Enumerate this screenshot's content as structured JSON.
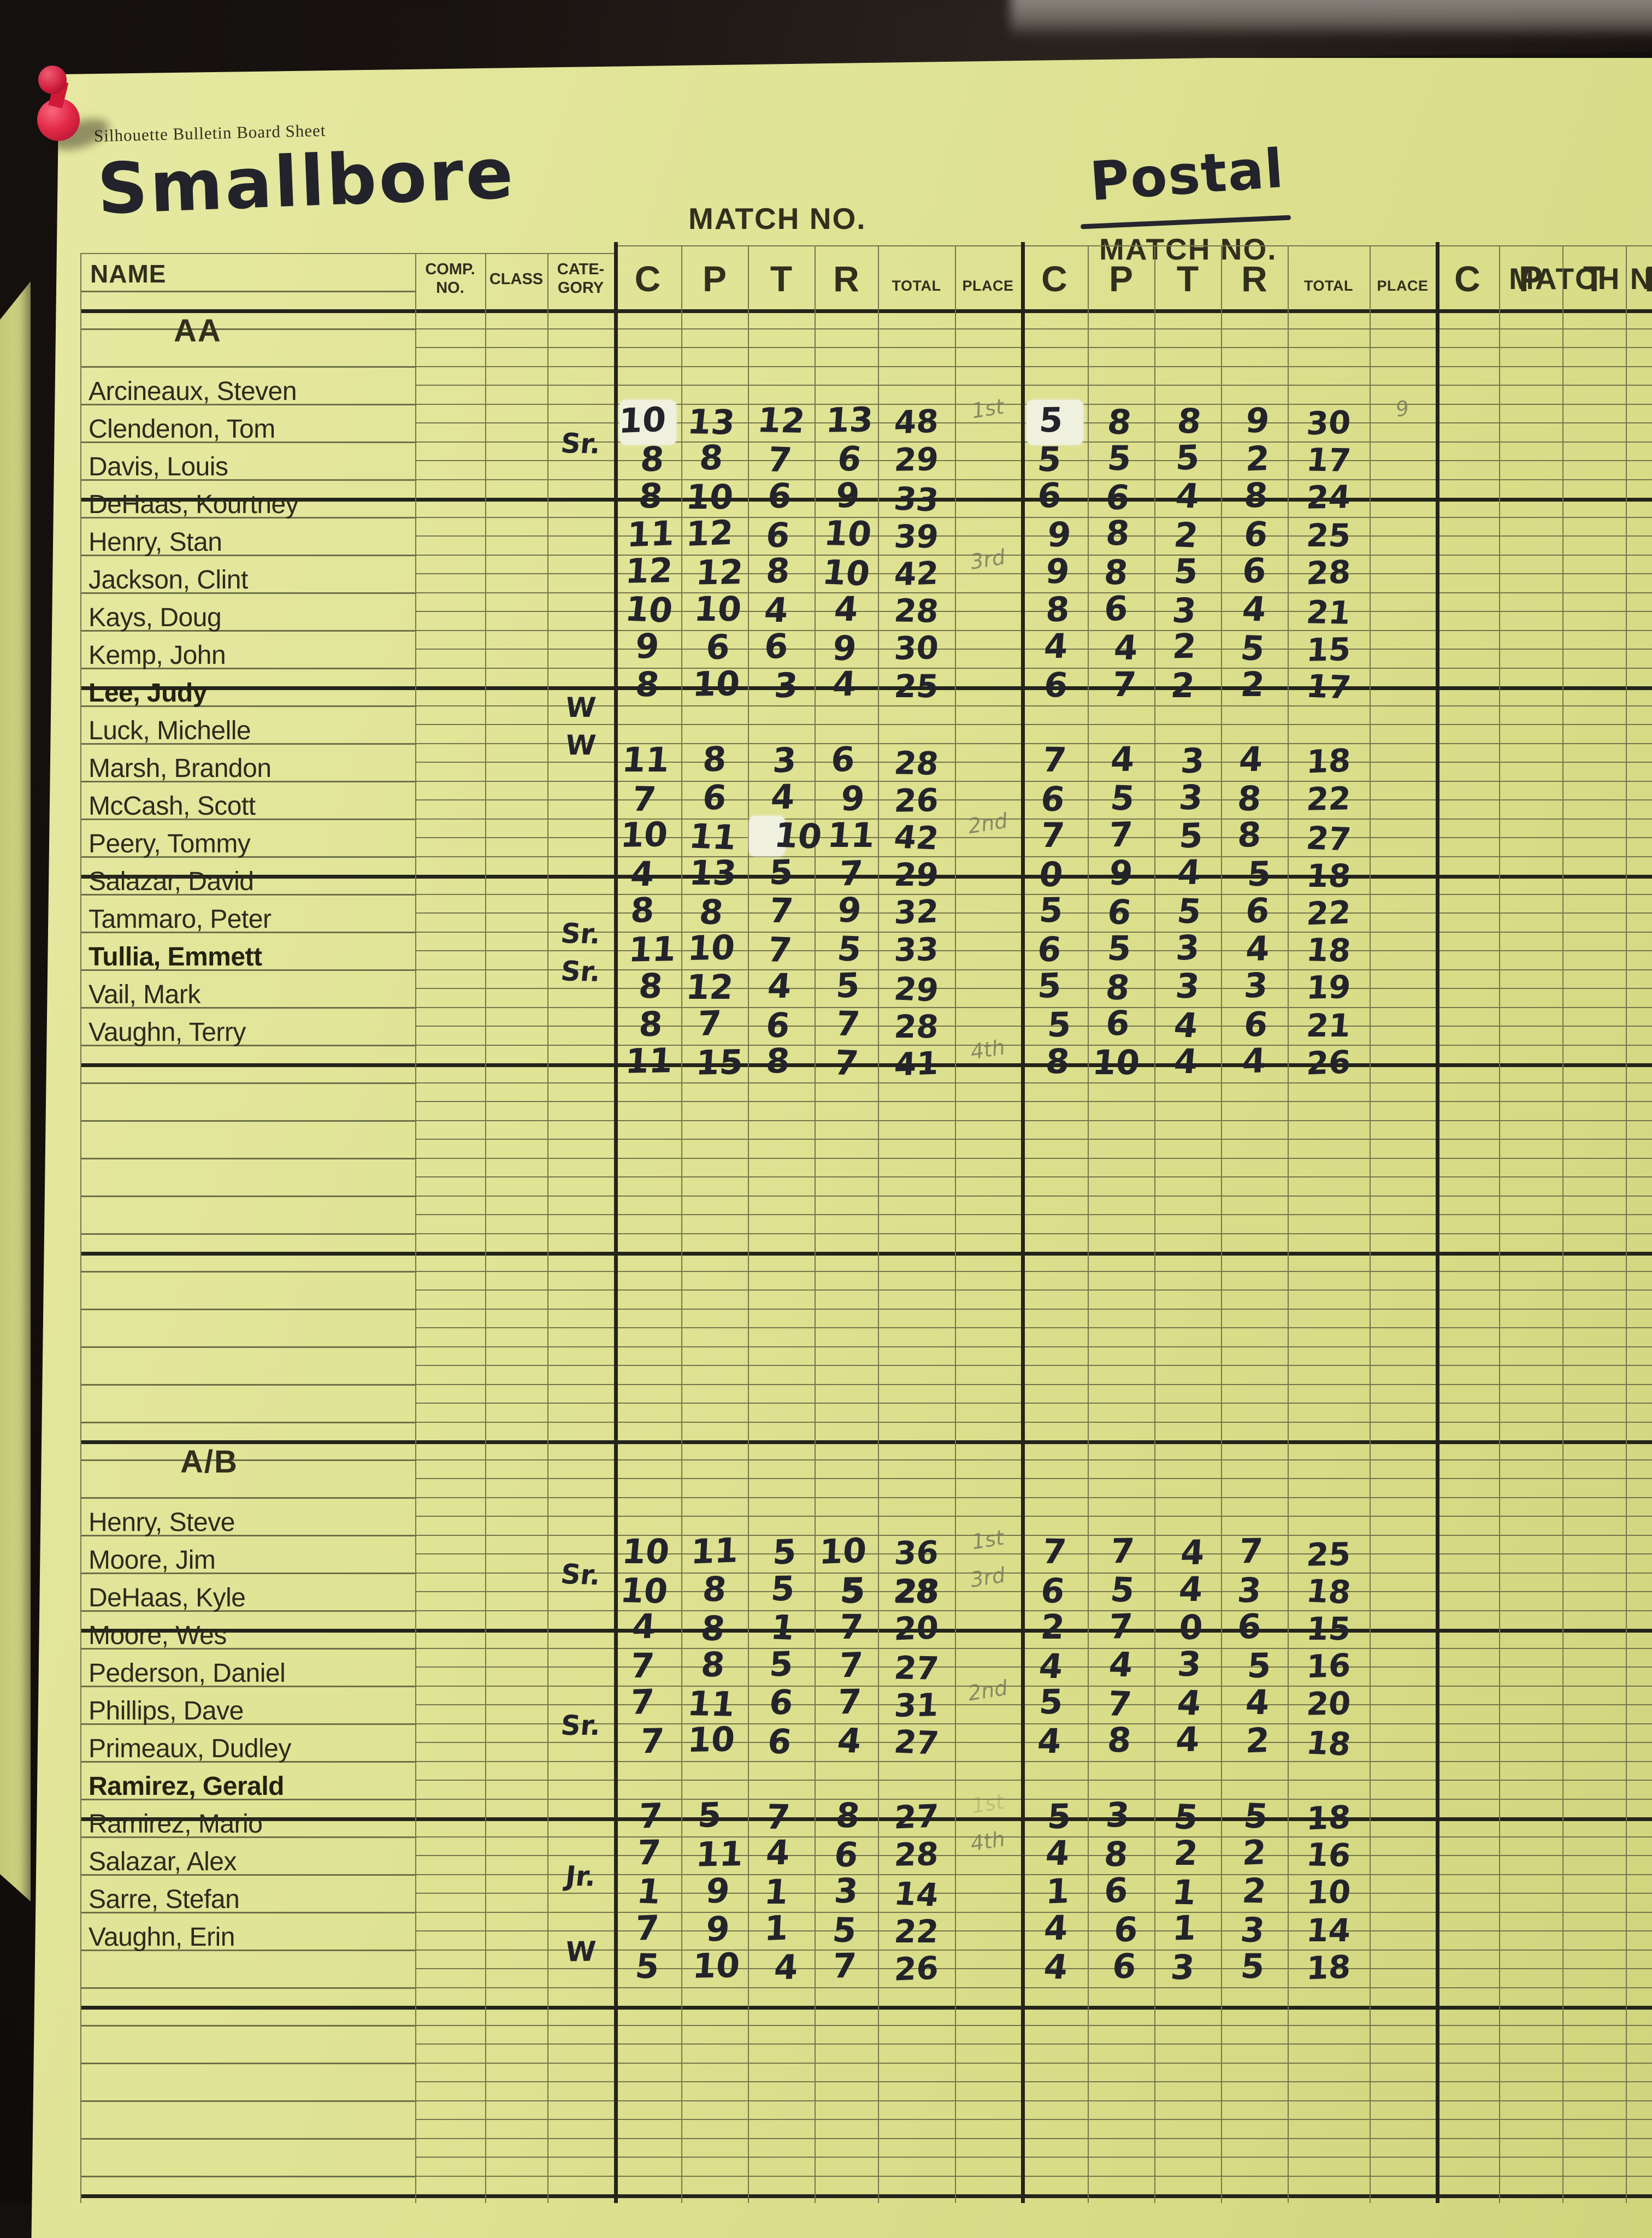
{
  "page": {
    "form_title": "Silhouette Bulletin Board Sheet",
    "event_title": "Smallbore",
    "postal_title": "Postal",
    "match_no_label": "MATCH NO.",
    "table_headers": {
      "name": "NAME",
      "comp_no": [
        "COMP.",
        "NO."
      ],
      "class": "CLASS",
      "category": [
        "CATE-",
        "GORY"
      ],
      "score_cols": [
        "C",
        "P",
        "T",
        "R"
      ],
      "total": "TOTAL",
      "place": "PLACE"
    }
  },
  "colors": {
    "sheet": "#dfe394",
    "board": "#181310",
    "ink": "#23232b",
    "pencil": "#73765a",
    "printed": "#30301d",
    "pin": "#e42a49",
    "whiteout": "#eff1de"
  },
  "sections": [
    {
      "title": "AA",
      "rows": [
        {
          "name": "Arcineaux, Steven",
          "bold": false,
          "category": "",
          "m1": {
            "c": "10",
            "p": "13",
            "t": "12",
            "r": "13",
            "total": "48",
            "place": "1st"
          },
          "m2": {
            "c": "5",
            "p": "8",
            "t": "8",
            "r": "9",
            "total": "30",
            "place": "9"
          },
          "fx": [
            "whiteout:m1.c",
            "whiteout:m2.c"
          ]
        },
        {
          "name": "Clendenon, Tom",
          "bold": false,
          "category": "Sr.",
          "m1": {
            "c": "8",
            "p": "8",
            "t": "7",
            "r": "6",
            "total": "29",
            "place": ""
          },
          "m2": {
            "c": "5",
            "p": "5",
            "t": "5",
            "r": "2",
            "total": "17",
            "place": ""
          },
          "fx": []
        },
        {
          "name": "Davis, Louis",
          "bold": false,
          "category": "",
          "m1": {
            "c": "8",
            "p": "10",
            "t": "6",
            "r": "9",
            "total": "33",
            "place": ""
          },
          "m2": {
            "c": "6",
            "p": "6",
            "t": "4",
            "r": "8",
            "total": "24",
            "place": ""
          },
          "fx": []
        },
        {
          "name": "DeHaas, Kourtney",
          "bold": false,
          "category": "",
          "m1": {
            "c": "11",
            "p": "12",
            "t": "6",
            "r": "10",
            "total": "39",
            "place": ""
          },
          "m2": {
            "c": "9",
            "p": "8",
            "t": "2",
            "r": "6",
            "total": "25",
            "place": ""
          },
          "fx": []
        },
        {
          "name": "Henry, Stan",
          "bold": false,
          "category": "",
          "m1": {
            "c": "12",
            "p": "12",
            "t": "8",
            "r": "10",
            "total": "42",
            "place": "3rd"
          },
          "m2": {
            "c": "9",
            "p": "8",
            "t": "5",
            "r": "6",
            "total": "28",
            "place": ""
          },
          "fx": []
        },
        {
          "name": "Jackson, Clint",
          "bold": false,
          "category": "",
          "m1": {
            "c": "10",
            "p": "10",
            "t": "4",
            "r": "4",
            "total": "28",
            "place": ""
          },
          "m2": {
            "c": "8",
            "p": "6",
            "t": "3",
            "r": "4",
            "total": "21",
            "place": ""
          },
          "fx": []
        },
        {
          "name": "Kays, Doug",
          "bold": false,
          "category": "",
          "m1": {
            "c": "9",
            "p": "6",
            "t": "6",
            "r": "9",
            "total": "30",
            "place": ""
          },
          "m2": {
            "c": "4",
            "p": "4",
            "t": "2",
            "r": "5",
            "total": "15",
            "place": ""
          },
          "fx": []
        },
        {
          "name": "Kemp, John",
          "bold": false,
          "category": "",
          "m1": {
            "c": "8",
            "p": "10",
            "t": "3",
            "r": "4",
            "total": "25",
            "place": ""
          },
          "m2": {
            "c": "6",
            "p": "7",
            "t": "2",
            "r": "2",
            "total": "17",
            "place": ""
          },
          "fx": []
        },
        {
          "name": "Lee, Judy",
          "bold": true,
          "category": "W",
          "m1": {
            "c": "",
            "p": "",
            "t": "",
            "r": "",
            "total": "",
            "place": ""
          },
          "m2": {
            "c": "",
            "p": "",
            "t": "",
            "r": "",
            "total": "",
            "place": ""
          },
          "fx": []
        },
        {
          "name": "Luck, Michelle",
          "bold": false,
          "category": "W",
          "m1": {
            "c": "11",
            "p": "8",
            "t": "3",
            "r": "6",
            "total": "28",
            "place": ""
          },
          "m2": {
            "c": "7",
            "p": "4",
            "t": "3",
            "r": "4",
            "total": "18",
            "place": ""
          },
          "fx": []
        },
        {
          "name": "Marsh, Brandon",
          "bold": false,
          "category": "",
          "m1": {
            "c": "7",
            "p": "6",
            "t": "4",
            "r": "9",
            "total": "26",
            "place": ""
          },
          "m2": {
            "c": "6",
            "p": "5",
            "t": "3",
            "r": "8",
            "total": "22",
            "place": ""
          },
          "fx": []
        },
        {
          "name": "McCash, Scott",
          "bold": false,
          "category": "",
          "m1": {
            "c": "10",
            "p": "11",
            "t": "10",
            "r": "11",
            "total": "42",
            "place": "2nd"
          },
          "m2": {
            "c": "7",
            "p": "7",
            "t": "5",
            "r": "8",
            "total": "27",
            "place": ""
          },
          "fx": [
            "whiteout-left:m1.t"
          ]
        },
        {
          "name": "Peery, Tommy",
          "bold": false,
          "category": "",
          "m1": {
            "c": "4",
            "p": "13",
            "t": "5",
            "r": "7",
            "total": "29",
            "place": ""
          },
          "m2": {
            "c": "0",
            "p": "9",
            "t": "4",
            "r": "5",
            "total": "18",
            "place": ""
          },
          "fx": []
        },
        {
          "name": "Salazar, David",
          "bold": false,
          "category": "",
          "m1": {
            "c": "8",
            "p": "8",
            "t": "7",
            "r": "9",
            "total": "32",
            "place": ""
          },
          "m2": {
            "c": "5",
            "p": "6",
            "t": "5",
            "r": "6",
            "total": "22",
            "place": ""
          },
          "fx": []
        },
        {
          "name": "Tammaro, Peter",
          "bold": false,
          "category": "Sr.",
          "m1": {
            "c": "11",
            "p": "10",
            "t": "7",
            "r": "5",
            "total": "33",
            "place": ""
          },
          "m2": {
            "c": "6",
            "p": "5",
            "t": "3",
            "r": "4",
            "total": "18",
            "place": ""
          },
          "fx": []
        },
        {
          "name": "Tullia, Emmett",
          "bold": true,
          "category": "Sr.",
          "m1": {
            "c": "8",
            "p": "12",
            "t": "4",
            "r": "5",
            "total": "29",
            "place": ""
          },
          "m2": {
            "c": "5",
            "p": "8",
            "t": "3",
            "r": "3",
            "total": "19",
            "place": ""
          },
          "fx": []
        },
        {
          "name": "Vail, Mark",
          "bold": false,
          "category": "",
          "m1": {
            "c": "8",
            "p": "7",
            "t": "6",
            "r": "7",
            "total": "28",
            "place": ""
          },
          "m2": {
            "c": "5",
            "p": "6",
            "t": "4",
            "r": "6",
            "total": "21",
            "place": ""
          },
          "fx": []
        },
        {
          "name": "Vaughn, Terry",
          "bold": false,
          "category": "",
          "m1": {
            "c": "11",
            "p": "15",
            "t": "8",
            "r": "7",
            "total": "41",
            "place": "4th"
          },
          "m2": {
            "c": "8",
            "p": "10",
            "t": "4",
            "r": "4",
            "total": "26",
            "place": ""
          },
          "fx": []
        }
      ]
    },
    {
      "title": "A/B",
      "rows": [
        {
          "name": "Henry, Steve",
          "bold": false,
          "category": "",
          "m1": {
            "c": "10",
            "p": "11",
            "t": "5",
            "r": "10",
            "total": "36",
            "place": "1st"
          },
          "m2": {
            "c": "7",
            "p": "7",
            "t": "4",
            "r": "7",
            "total": "25",
            "place": ""
          },
          "fx": []
        },
        {
          "name": "Moore, Jim",
          "bold": false,
          "category": "Sr.",
          "m1": {
            "c": "10",
            "p": "8",
            "t": "5",
            "r": "5",
            "total": "28",
            "place": "3rd"
          },
          "m2": {
            "c": "6",
            "p": "5",
            "t": "4",
            "r": "3",
            "total": "18",
            "place": ""
          },
          "fx": [
            "overwrite:m1.r",
            "overwrite:m1.total"
          ]
        },
        {
          "name": "DeHaas, Kyle",
          "bold": false,
          "category": "",
          "m1": {
            "c": "4",
            "p": "8",
            "t": "1",
            "r": "7",
            "total": "20",
            "place": ""
          },
          "m2": {
            "c": "2",
            "p": "7",
            "t": "0",
            "r": "6",
            "total": "15",
            "place": ""
          },
          "fx": []
        },
        {
          "name": "Moore, Wes",
          "bold": false,
          "category": "",
          "m1": {
            "c": "7",
            "p": "8",
            "t": "5",
            "r": "7",
            "total": "27",
            "place": ""
          },
          "m2": {
            "c": "4",
            "p": "4",
            "t": "3",
            "r": "5",
            "total": "16",
            "place": ""
          },
          "fx": []
        },
        {
          "name": "Pederson, Daniel",
          "bold": false,
          "category": "",
          "m1": {
            "c": "7",
            "p": "11",
            "t": "6",
            "r": "7",
            "total": "31",
            "place": "2nd"
          },
          "m2": {
            "c": "5",
            "p": "7",
            "t": "4",
            "r": "4",
            "total": "20",
            "place": ""
          },
          "fx": []
        },
        {
          "name": "Phillips, Dave",
          "bold": false,
          "category": "Sr.",
          "m1": {
            "c": "7",
            "p": "10",
            "t": "6",
            "r": "4",
            "total": "27",
            "place": ""
          },
          "m2": {
            "c": "4",
            "p": "8",
            "t": "4",
            "r": "2",
            "total": "18",
            "place": ""
          },
          "fx": []
        },
        {
          "name": "Primeaux, Dudley",
          "bold": false,
          "category": "",
          "m1": {
            "c": "",
            "p": "",
            "t": "",
            "r": "",
            "total": "",
            "place": ""
          },
          "m2": {
            "c": "",
            "p": "",
            "t": "",
            "r": "",
            "total": "",
            "place": ""
          },
          "fx": []
        },
        {
          "name": "Ramirez, Gerald",
          "bold": true,
          "category": "",
          "m1": {
            "c": "7",
            "p": "5",
            "t": "7",
            "r": "8",
            "total": "27",
            "place": "1st"
          },
          "m2": {
            "c": "5",
            "p": "3",
            "t": "5",
            "r": "5",
            "total": "18",
            "place": ""
          },
          "fx": [
            "faint:m1.place"
          ]
        },
        {
          "name": "Ramirez, Mario",
          "bold": false,
          "category": "",
          "m1": {
            "c": "7",
            "p": "11",
            "t": "4",
            "r": "6",
            "total": "28",
            "place": "4th"
          },
          "m2": {
            "c": "4",
            "p": "8",
            "t": "2",
            "r": "2",
            "total": "16",
            "place": ""
          },
          "fx": []
        },
        {
          "name": "Salazar, Alex",
          "bold": false,
          "category": "Jr.",
          "m1": {
            "c": "1",
            "p": "9",
            "t": "1",
            "r": "3",
            "total": "14",
            "place": ""
          },
          "m2": {
            "c": "1",
            "p": "6",
            "t": "1",
            "r": "2",
            "total": "10",
            "place": ""
          },
          "fx": []
        },
        {
          "name": "Sarre, Stefan",
          "bold": false,
          "category": "",
          "m1": {
            "c": "7",
            "p": "9",
            "t": "1",
            "r": "5",
            "total": "22",
            "place": ""
          },
          "m2": {
            "c": "4",
            "p": "6",
            "t": "1",
            "r": "3",
            "total": "14",
            "place": ""
          },
          "fx": []
        },
        {
          "name": "Vaughn, Erin",
          "bold": false,
          "category": "W",
          "m1": {
            "c": "5",
            "p": "10",
            "t": "4",
            "r": "7",
            "total": "26",
            "place": ""
          },
          "m2": {
            "c": "4",
            "p": "6",
            "t": "3",
            "r": "5",
            "total": "18",
            "place": ""
          },
          "fx": []
        }
      ]
    }
  ]
}
